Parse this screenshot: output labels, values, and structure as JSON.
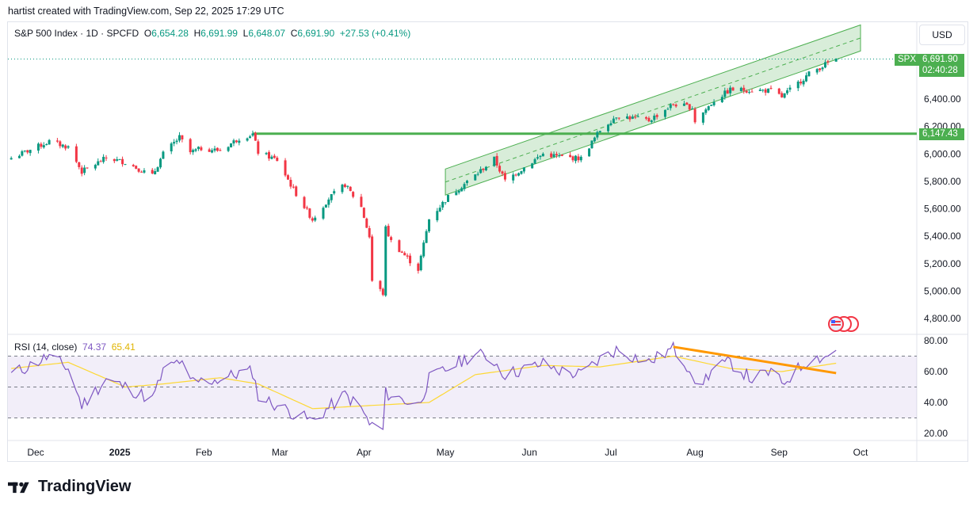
{
  "header": {
    "text": "hartist created with TradingView.com, Sep 22, 2025 17:29 UTC"
  },
  "legend": {
    "symbol": "S&P 500 Index · 1D · SPCFD",
    "o_label": "O",
    "o": "6,654.28",
    "h_label": "H",
    "h": "6,691.99",
    "l_label": "L",
    "l": "6,648.07",
    "c_label": "C",
    "c": "6,691.90",
    "change": "+27.53 (+0.41%)"
  },
  "currency": "USD",
  "price_tag": {
    "symbol": "SPX",
    "price": "6,691.90",
    "countdown": "02:40:28"
  },
  "level_tag": "6,147.43",
  "rsi_legend": {
    "name": "RSI (14, close)",
    "rsi": "74.37",
    "ma": "65.41"
  },
  "logo": "TradingView",
  "colors": {
    "up": "#089981",
    "down": "#f23645",
    "channel": "#4caf50",
    "level": "#4caf50",
    "rsi": "#7e57c2",
    "rsi_ma": "#fdd835",
    "trendline": "#ff9800"
  },
  "chart_data": [
    {
      "type": "candlestick",
      "title": "S&P 500 Index · 1D · SPCFD",
      "y_ticks": [
        "6,400.00",
        "6,200.00",
        "6,000.00",
        "5,800.00",
        "5,600.00",
        "5,400.00",
        "5,200.00",
        "5,000.00",
        "4,800.00"
      ],
      "y_tick_values": [
        6400,
        6200,
        6000,
        5800,
        5600,
        5400,
        5200,
        5000,
        4800
      ],
      "ylim": [
        4720,
        6940
      ],
      "x_ticks": [
        "Dec",
        "2025",
        "Feb",
        "Mar",
        "Apr",
        "May",
        "Jun",
        "Jul",
        "Aug",
        "Sep",
        "Oct"
      ],
      "x_tick_dates": [
        "2024-12-01",
        "2025-01-01",
        "2025-02-01",
        "2025-03-01",
        "2025-04-01",
        "2025-05-01",
        "2025-06-01",
        "2025-07-01",
        "2025-08-01",
        "2025-09-01",
        "2025-10-01"
      ],
      "close_path": [
        [
          "2024-11-22",
          5970
        ],
        [
          "2024-11-29",
          6030
        ],
        [
          "2024-12-06",
          6090
        ],
        [
          "2024-12-13",
          6050
        ],
        [
          "2024-12-18",
          5870
        ],
        [
          "2024-12-27",
          5970
        ],
        [
          "2025-01-03",
          5940
        ],
        [
          "2025-01-13",
          5840
        ],
        [
          "2025-01-17",
          6000
        ],
        [
          "2025-01-23",
          6120
        ],
        [
          "2025-01-27",
          6010
        ],
        [
          "2025-01-31",
          6040
        ],
        [
          "2025-02-07",
          6025
        ],
        [
          "2025-02-14",
          6115
        ],
        [
          "2025-02-19",
          6144
        ],
        [
          "2025-02-21",
          6013
        ],
        [
          "2025-02-28",
          5955
        ],
        [
          "2025-03-06",
          5740
        ],
        [
          "2025-03-13",
          5521
        ],
        [
          "2025-03-19",
          5675
        ],
        [
          "2025-03-25",
          5776
        ],
        [
          "2025-03-31",
          5612
        ],
        [
          "2025-04-03",
          5396
        ],
        [
          "2025-04-04",
          5074
        ],
        [
          "2025-04-08",
          4982
        ],
        [
          "2025-04-09",
          5457
        ],
        [
          "2025-04-11",
          5363
        ],
        [
          "2025-04-21",
          5158
        ],
        [
          "2025-04-25",
          5525
        ],
        [
          "2025-05-02",
          5687
        ],
        [
          "2025-05-12",
          5844
        ],
        [
          "2025-05-19",
          5963
        ],
        [
          "2025-05-23",
          5803
        ],
        [
          "2025-06-06",
          6000
        ],
        [
          "2025-06-13",
          5977
        ],
        [
          "2025-06-20",
          5967
        ],
        [
          "2025-06-27",
          6173
        ],
        [
          "2025-07-03",
          6279
        ],
        [
          "2025-07-15",
          6244
        ],
        [
          "2025-07-24",
          6363
        ],
        [
          "2025-07-31",
          6339
        ],
        [
          "2025-08-01",
          6238
        ],
        [
          "2025-08-08",
          6389
        ],
        [
          "2025-08-14",
          6468
        ],
        [
          "2025-08-22",
          6466
        ],
        [
          "2025-08-29",
          6460
        ],
        [
          "2025-09-02",
          6415
        ],
        [
          "2025-09-12",
          6584
        ],
        [
          "2025-09-19",
          6664
        ],
        [
          "2025-09-22",
          6692
        ]
      ],
      "horizontal_level": {
        "value": 6147.43,
        "from": "2025-02-19"
      },
      "channel": {
        "start": "2025-05-01",
        "end": "2025-10-01",
        "upper": [
          5890,
          6940
        ],
        "lower": [
          5700,
          6750
        ]
      },
      "last_price": 6691.9
    },
    {
      "type": "line",
      "title": "RSI (14, close)",
      "y_ticks": [
        "80.00",
        "60.00",
        "40.00",
        "20.00"
      ],
      "y_tick_values": [
        80,
        60,
        40,
        20
      ],
      "ylim": [
        15,
        85
      ],
      "levels": [
        70,
        50,
        30
      ],
      "series": [
        {
          "name": "RSI",
          "points": [
            [
              "2024-11-22",
              58
            ],
            [
              "2024-12-06",
              70
            ],
            [
              "2024-12-13",
              62
            ],
            [
              "2024-12-18",
              38
            ],
            [
              "2024-12-27",
              55
            ],
            [
              "2025-01-03",
              50
            ],
            [
              "2025-01-13",
              42
            ],
            [
              "2025-01-17",
              60
            ],
            [
              "2025-01-23",
              67
            ],
            [
              "2025-01-27",
              53
            ],
            [
              "2025-02-07",
              55
            ],
            [
              "2025-02-14",
              59
            ],
            [
              "2025-02-19",
              60
            ],
            [
              "2025-02-21",
              44
            ],
            [
              "2025-03-06",
              33
            ],
            [
              "2025-03-13",
              28
            ],
            [
              "2025-03-25",
              45
            ],
            [
              "2025-03-31",
              36
            ],
            [
              "2025-04-03",
              26
            ],
            [
              "2025-04-08",
              22
            ],
            [
              "2025-04-09",
              46
            ],
            [
              "2025-04-21",
              38
            ],
            [
              "2025-04-25",
              55
            ],
            [
              "2025-05-02",
              62
            ],
            [
              "2025-05-12",
              72
            ],
            [
              "2025-05-19",
              67
            ],
            [
              "2025-05-23",
              58
            ],
            [
              "2025-06-06",
              65
            ],
            [
              "2025-06-13",
              60
            ],
            [
              "2025-06-20",
              58
            ],
            [
              "2025-06-27",
              68
            ],
            [
              "2025-07-03",
              74
            ],
            [
              "2025-07-15",
              66
            ],
            [
              "2025-07-24",
              75
            ],
            [
              "2025-07-31",
              60
            ],
            [
              "2025-08-01",
              48
            ],
            [
              "2025-08-08",
              62
            ],
            [
              "2025-08-14",
              66
            ],
            [
              "2025-08-22",
              55
            ],
            [
              "2025-08-29",
              60
            ],
            [
              "2025-09-02",
              52
            ],
            [
              "2025-09-12",
              68
            ],
            [
              "2025-09-19",
              70
            ],
            [
              "2025-09-22",
              74.37
            ]
          ]
        },
        {
          "name": "MA",
          "points": [
            [
              "2024-11-22",
              62
            ],
            [
              "2024-12-13",
              66
            ],
            [
              "2025-01-03",
              50
            ],
            [
              "2025-01-17",
              52
            ],
            [
              "2025-02-07",
              56
            ],
            [
              "2025-02-21",
              52
            ],
            [
              "2025-03-13",
              36
            ],
            [
              "2025-04-03",
              38
            ],
            [
              "2025-04-25",
              40
            ],
            [
              "2025-05-12",
              58
            ],
            [
              "2025-06-06",
              64
            ],
            [
              "2025-06-27",
              63
            ],
            [
              "2025-07-24",
              70
            ],
            [
              "2025-08-14",
              62
            ],
            [
              "2025-09-02",
              60
            ],
            [
              "2025-09-22",
              65.41
            ]
          ]
        }
      ],
      "trendline": {
        "from": [
          "2025-07-24",
          76
        ],
        "to": [
          "2025-09-22",
          59
        ]
      }
    }
  ]
}
